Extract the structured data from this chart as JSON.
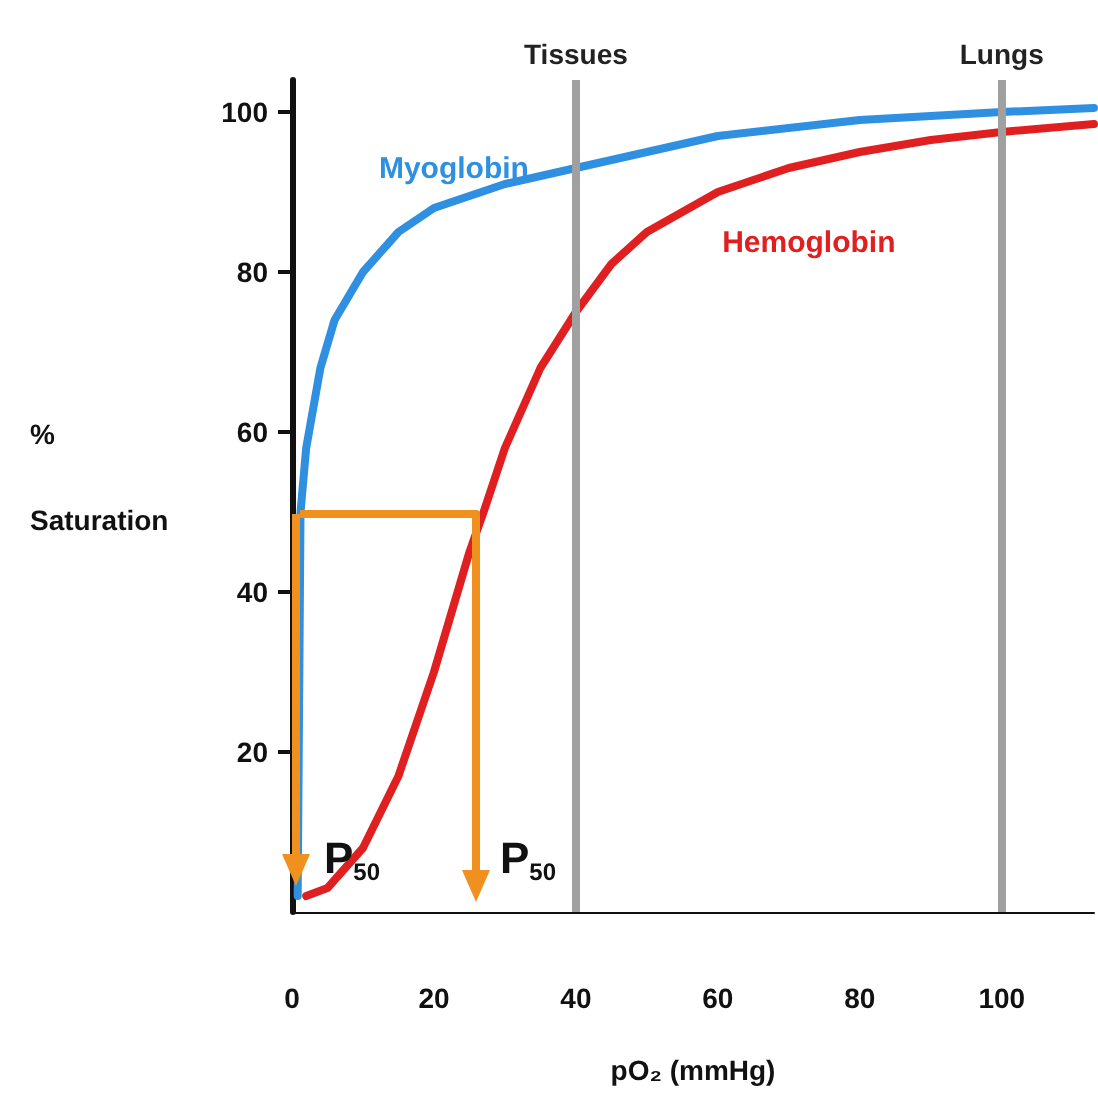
{
  "chart_data": {
    "type": "line",
    "xlabel": "pO₂ (mmHg)",
    "ylabel": "% Saturation",
    "xlim": [
      0,
      113
    ],
    "xticks": [
      0,
      20,
      40,
      60,
      80,
      100
    ],
    "ylim": [
      0,
      104
    ],
    "yticks": [
      20,
      40,
      60,
      80,
      100
    ],
    "grid": false,
    "legend": false,
    "marker": "none",
    "line_style": "solid",
    "series": [
      {
        "name": "Myoglobin",
        "color": "#2f8fe0",
        "x": [
          0.8,
          1.2,
          2,
          4,
          6,
          10,
          15,
          20,
          30,
          40,
          50,
          60,
          80,
          100,
          113
        ],
        "values": [
          2,
          50,
          58,
          68,
          74,
          80,
          85,
          88,
          91,
          93,
          95,
          97,
          99,
          100,
          100.5
        ]
      },
      {
        "name": "Hemoglobin",
        "color": "#e02020",
        "x": [
          2,
          5,
          10,
          15,
          20,
          25,
          27,
          30,
          35,
          40,
          45,
          50,
          60,
          70,
          80,
          90,
          100,
          113
        ],
        "values": [
          2,
          3,
          8,
          17,
          30,
          45,
          50,
          58,
          68,
          75,
          81,
          85,
          90,
          93,
          95,
          96.5,
          97.5,
          98.5
        ]
      }
    ],
    "ref_lines": [
      {
        "axis": "x",
        "value": 40,
        "label": "Tissues",
        "color": "#a0a0a0"
      },
      {
        "axis": "x",
        "value": 100,
        "label": "Lungs",
        "color": "#a0a0a0"
      }
    ],
    "annotations": [
      "P$_{50}$",
      "P$_{50}$"
    ]
  }
}
